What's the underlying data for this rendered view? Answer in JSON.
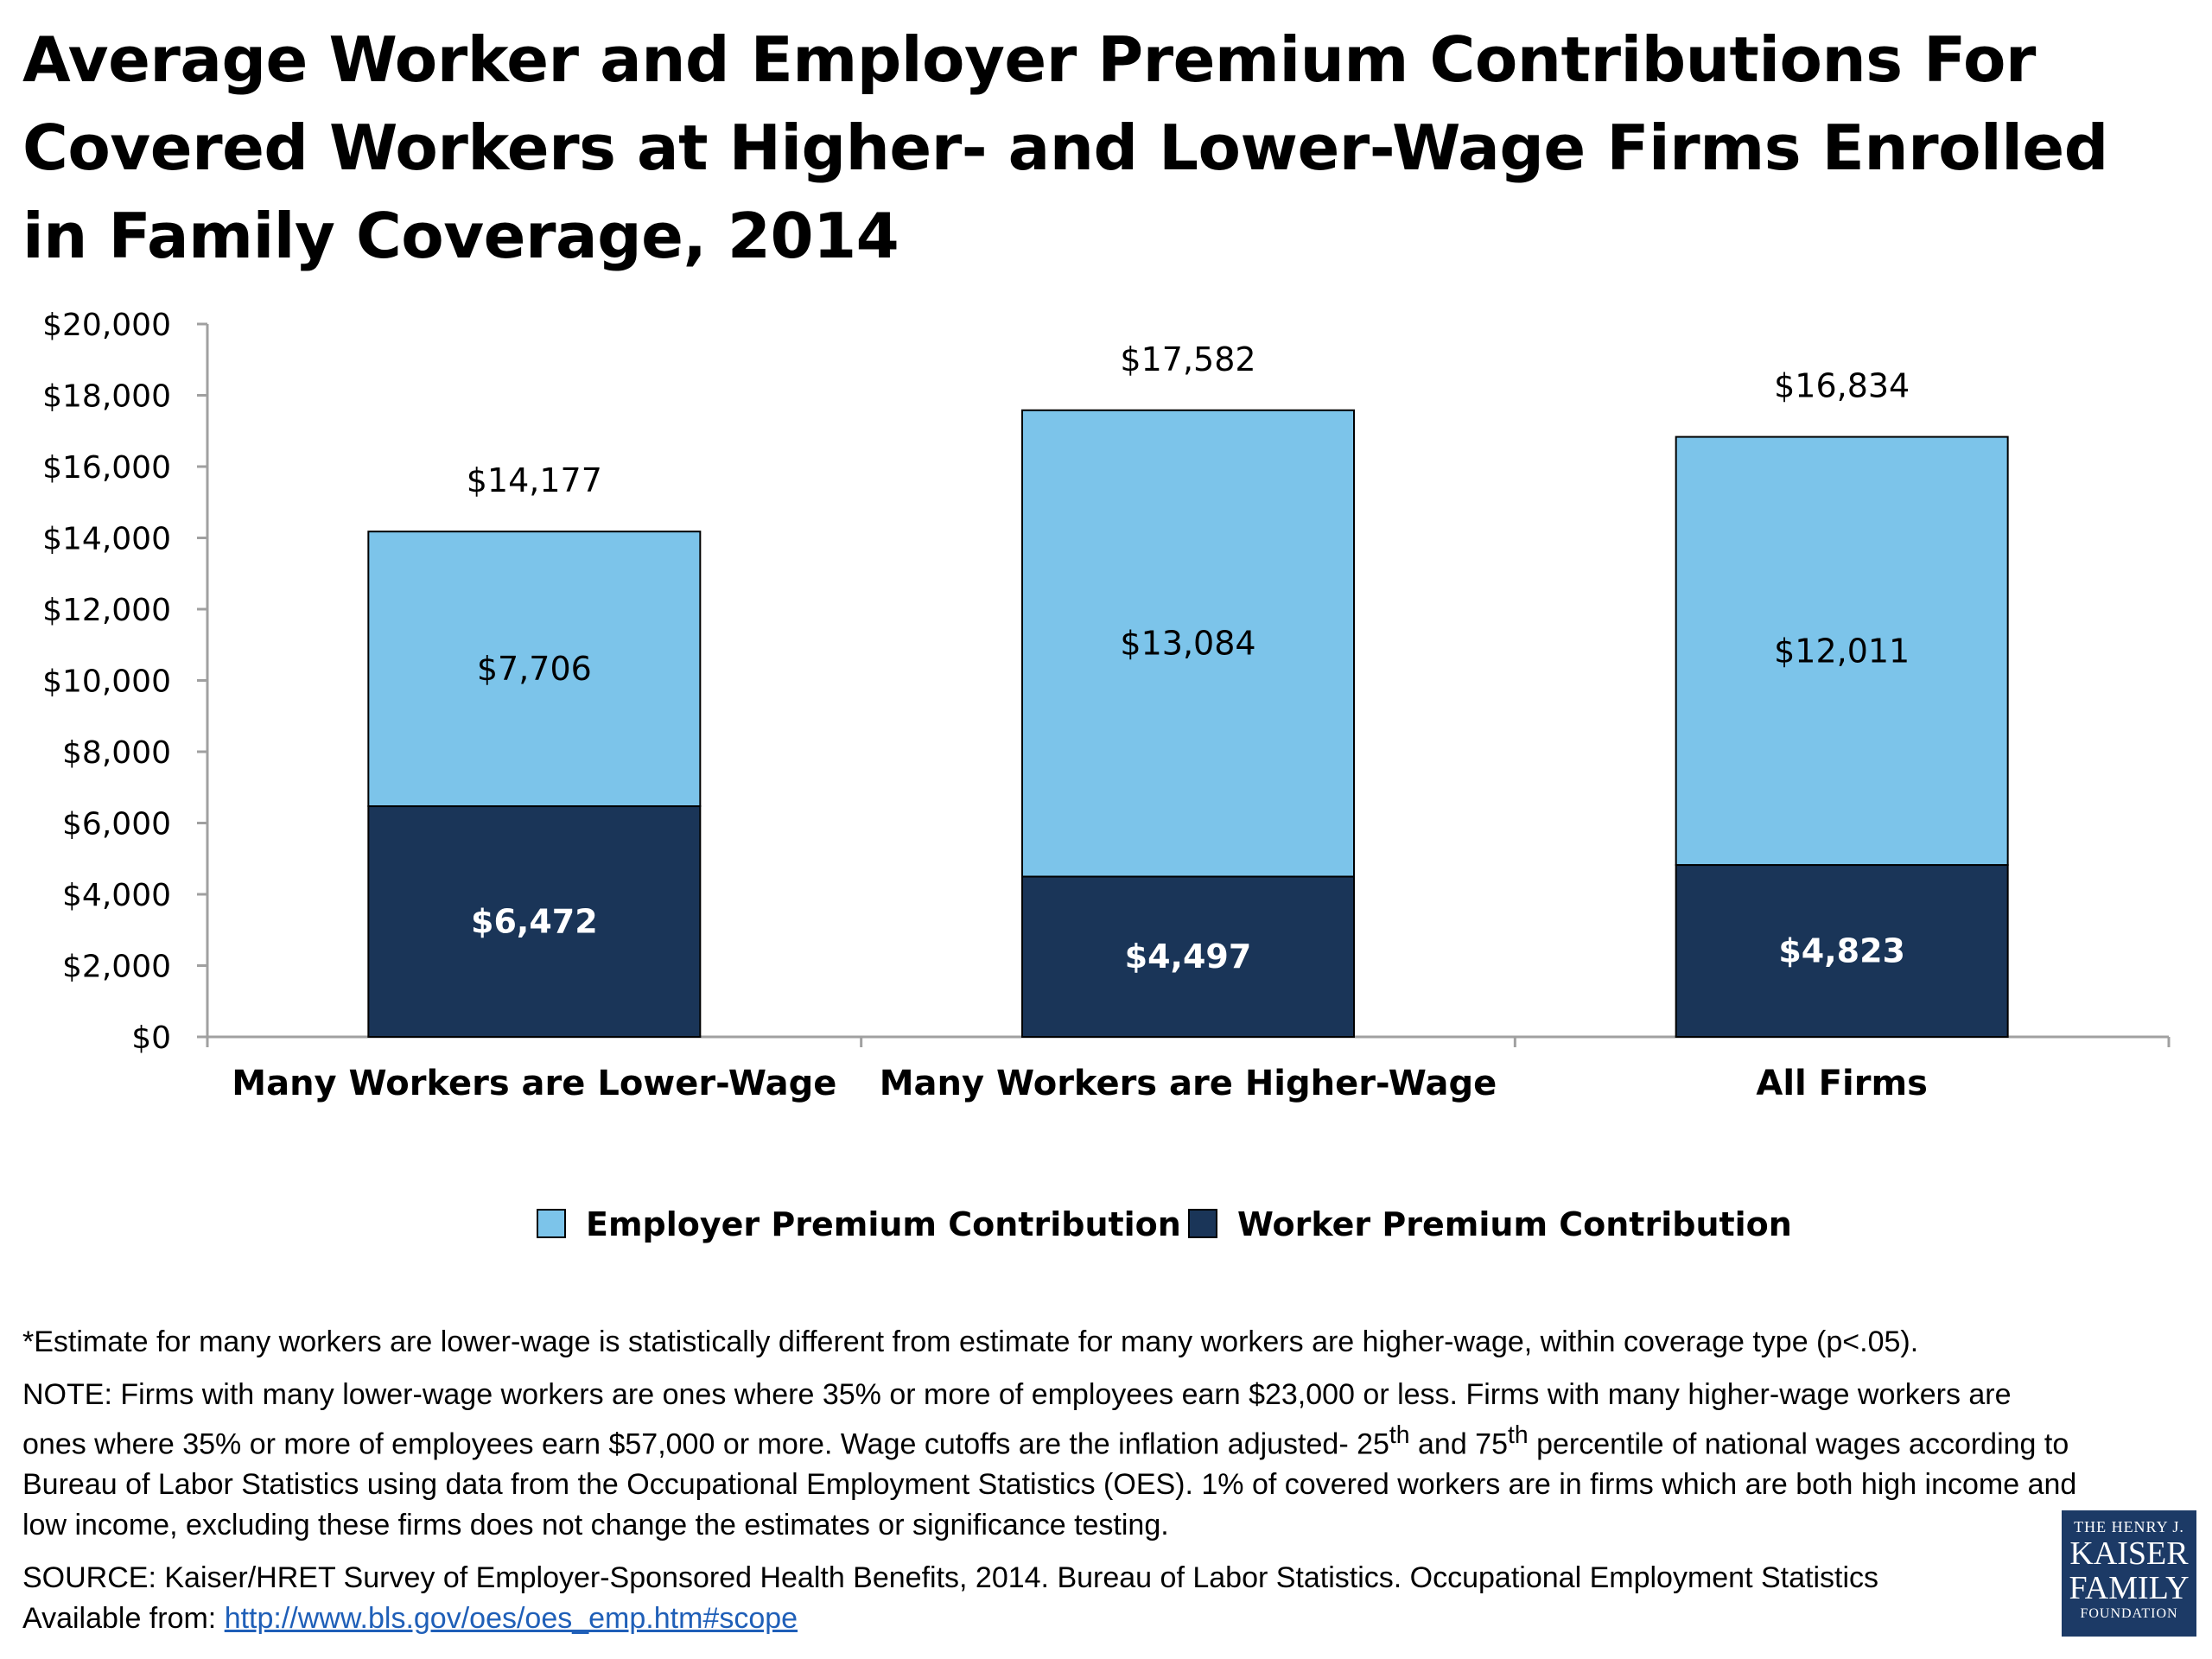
{
  "title": "Average Worker and Employer Premium Contributions For Covered Workers at Higher- and Lower-Wage Firms Enrolled in Family Coverage, 2014",
  "colors": {
    "employer": "#7cc4ea",
    "worker": "#1a3558",
    "axis": "#a0a0a0"
  },
  "chart_data": {
    "type": "bar",
    "stacked": true,
    "categories": [
      "Many Workers are Lower-Wage",
      "Many Workers are Higher-Wage",
      "All Firms"
    ],
    "series": [
      {
        "name": "Worker Premium Contribution",
        "values": [
          6472,
          4497,
          4823
        ],
        "labels": [
          "$6,472",
          "$4,497",
          "$4,823"
        ]
      },
      {
        "name": "Employer Premium Contribution",
        "values": [
          7706,
          13084,
          12011
        ],
        "labels": [
          "$7,706",
          "$13,084",
          "$12,011"
        ]
      }
    ],
    "totals": [
      14177,
      17582,
      16834
    ],
    "total_labels": [
      "$14,177",
      "$17,582",
      "$16,834"
    ],
    "ylim": [
      0,
      20000
    ],
    "yticks": [
      0,
      2000,
      4000,
      6000,
      8000,
      10000,
      12000,
      14000,
      16000,
      18000,
      20000
    ],
    "ytick_labels": [
      "$0",
      "$2,000",
      "$4,000",
      "$6,000",
      "$8,000",
      "$10,000",
      "$12,000",
      "$14,000",
      "$16,000",
      "$18,000",
      "$20,000"
    ],
    "grid": false,
    "legend_position": "bottom",
    "legend": [
      "Employer Premium Contribution",
      "Worker Premium Contribution"
    ]
  },
  "footnotes": {
    "significance": "*Estimate for many workers are lower-wage is statistically different from estimate for many workers are higher-wage, within coverage type (p<.05).",
    "note_part1": "NOTE:  Firms with many lower-wage workers are ones where 35% or more of employees earn $23,000 or less.  Firms with many higher-wage workers are ones where 35% or more of employees earn $57,000 or more. Wage cutoffs are the inflation adjusted- 25",
    "note_sup1": "th",
    "note_part2": " and 75",
    "note_sup2": "th",
    "note_part3": " percentile of national wages according to Bureau of Labor Statistics using data from the Occupational Employment Statistics (OES).  1% of covered workers are in firms which are both high income and low income, excluding these firms does not change the estimates or significance testing.",
    "source": "SOURCE:  Kaiser/HRET Survey of Employer-Sponsored Health Benefits, 2014. Bureau of Labor Statistics. Occupational Employment Statistics",
    "available_prefix": "Available from: ",
    "link": "http://www.bls.gov/oes/oes_emp.htm#scope"
  },
  "logo": {
    "line1": "THE HENRY J.",
    "line2": "KAISER",
    "line3": "FAMILY",
    "line4": "FOUNDATION"
  }
}
